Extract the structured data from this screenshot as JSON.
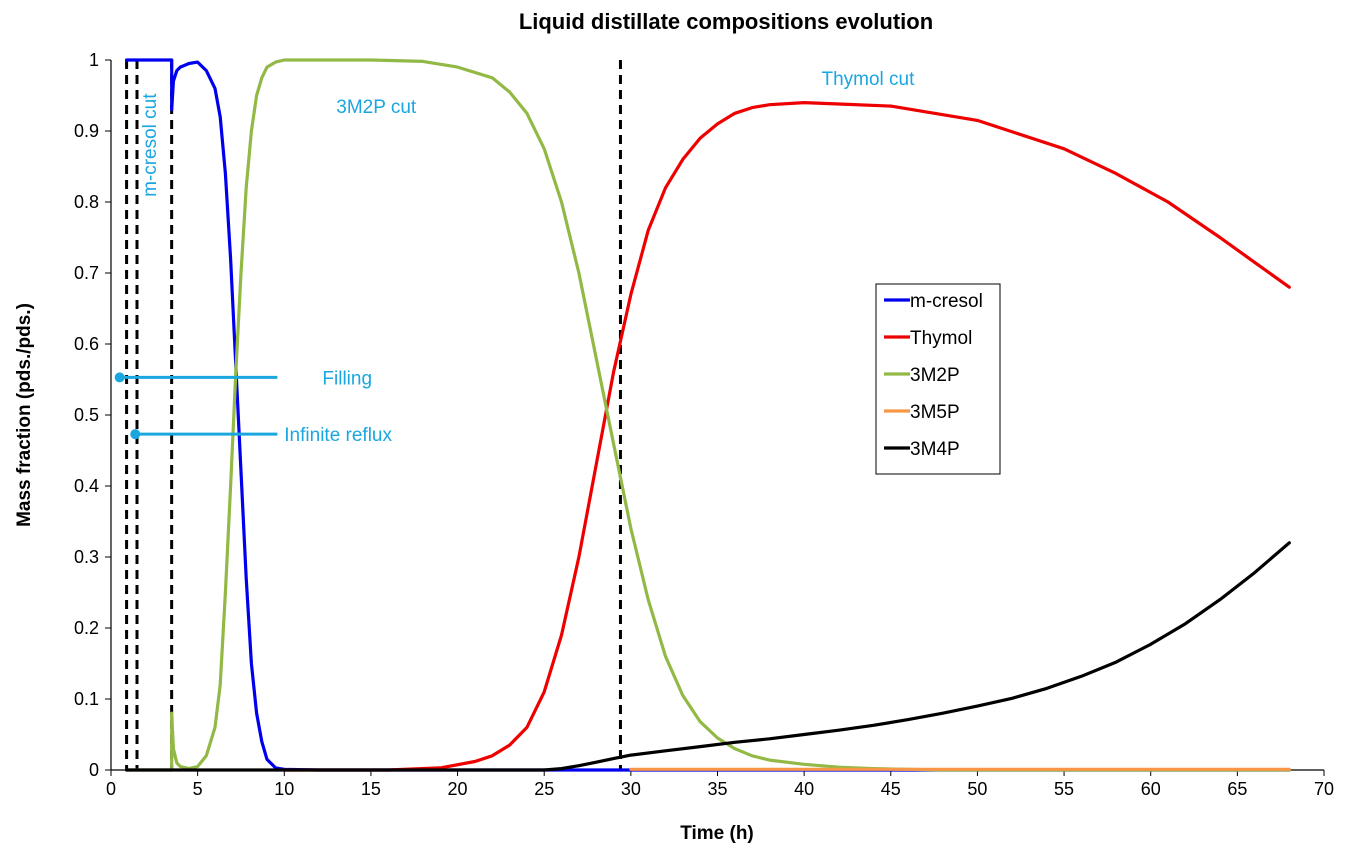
{
  "chart_data": {
    "type": "line",
    "title": "Liquid distillate compositions evolution",
    "xlabel": "Time (h)",
    "ylabel": "Mass fraction (pds./pds.)",
    "xlim": [
      0,
      70
    ],
    "ylim": [
      0,
      1
    ],
    "xticks": [
      0,
      5,
      10,
      15,
      20,
      25,
      30,
      35,
      40,
      45,
      50,
      55,
      60,
      65,
      70
    ],
    "yticks": [
      0,
      0.1,
      0.2,
      0.3,
      0.4,
      0.5,
      0.6,
      0.7,
      0.8,
      0.9,
      1
    ],
    "grid": false,
    "legend_position": "right-middle",
    "series": [
      {
        "name": "m-cresol",
        "color": "#0000ee",
        "x": [
          0.9,
          3.5,
          3.5,
          3.6,
          3.8,
          4.0,
          4.5,
          5.0,
          5.5,
          6.0,
          6.3,
          6.6,
          6.9,
          7.2,
          7.5,
          7.8,
          8.1,
          8.4,
          8.7,
          9.0,
          9.5,
          10.0,
          12.0,
          68.0
        ],
        "y": [
          1.0,
          1.0,
          0.93,
          0.97,
          0.985,
          0.99,
          0.995,
          0.997,
          0.985,
          0.96,
          0.92,
          0.84,
          0.72,
          0.57,
          0.42,
          0.27,
          0.15,
          0.08,
          0.04,
          0.015,
          0.003,
          0.001,
          0.0,
          0.0
        ]
      },
      {
        "name": "Thymol",
        "color": "#ee0000",
        "x": [
          10,
          16,
          19,
          21,
          22,
          23,
          24,
          25,
          26,
          27,
          28,
          29,
          30,
          31,
          32,
          33,
          34,
          35,
          36,
          37,
          38,
          40,
          42,
          45,
          50,
          55,
          58,
          61,
          64,
          66,
          68
        ],
        "y": [
          0.0,
          0.0,
          0.003,
          0.012,
          0.02,
          0.035,
          0.06,
          0.11,
          0.19,
          0.3,
          0.43,
          0.56,
          0.67,
          0.76,
          0.82,
          0.86,
          0.89,
          0.91,
          0.925,
          0.933,
          0.937,
          0.94,
          0.938,
          0.935,
          0.915,
          0.875,
          0.84,
          0.8,
          0.75,
          0.715,
          0.68
        ]
      },
      {
        "name": "3M2P",
        "color": "#92b946",
        "x": [
          0.9,
          3.5,
          3.5,
          3.6,
          3.8,
          4.0,
          4.5,
          5.0,
          5.5,
          6.0,
          6.3,
          6.6,
          6.9,
          7.2,
          7.5,
          7.8,
          8.1,
          8.4,
          8.7,
          9.0,
          9.5,
          10.0,
          12,
          15,
          18,
          20,
          22,
          23,
          24,
          25,
          26,
          27,
          28,
          29,
          30,
          31,
          32,
          33,
          34,
          35,
          36,
          37,
          38,
          40,
          42,
          44,
          46,
          48,
          68
        ],
        "y": [
          0.0,
          0.0,
          0.08,
          0.03,
          0.01,
          0.005,
          0.002,
          0.005,
          0.02,
          0.06,
          0.12,
          0.25,
          0.4,
          0.56,
          0.7,
          0.82,
          0.9,
          0.95,
          0.975,
          0.99,
          0.997,
          1.0,
          1.0,
          1.0,
          0.998,
          0.99,
          0.975,
          0.955,
          0.925,
          0.875,
          0.8,
          0.7,
          0.58,
          0.46,
          0.34,
          0.24,
          0.16,
          0.105,
          0.068,
          0.045,
          0.03,
          0.02,
          0.014,
          0.008,
          0.004,
          0.002,
          0.001,
          0.0,
          0.0
        ]
      },
      {
        "name": "3M5P",
        "color": "#f79646",
        "x": [
          30,
          40,
          50,
          60,
          68
        ],
        "y": [
          0.001,
          0.001,
          0.001,
          0.001,
          0.001
        ]
      },
      {
        "name": "3M4P",
        "color": "#000000",
        "x": [
          0.9,
          25,
          26,
          27,
          28,
          29,
          30,
          32,
          34,
          36,
          38,
          40,
          42,
          44,
          46,
          48,
          50,
          52,
          54,
          56,
          58,
          60,
          62,
          64,
          66,
          68
        ],
        "y": [
          0.0,
          0.0,
          0.002,
          0.006,
          0.011,
          0.016,
          0.021,
          0.027,
          0.033,
          0.039,
          0.044,
          0.05,
          0.056,
          0.063,
          0.071,
          0.08,
          0.09,
          0.101,
          0.115,
          0.132,
          0.152,
          0.177,
          0.206,
          0.24,
          0.278,
          0.32
        ]
      }
    ],
    "vertical_markers": [
      0.9,
      1.5,
      3.5,
      29.4
    ],
    "annotations": [
      {
        "text": "3M2P cut",
        "x": 13,
        "y": 0.935,
        "color": "#1aa6df"
      },
      {
        "text": "Thymol cut",
        "x": 41,
        "y": 0.975,
        "color": "#1aa6df"
      },
      {
        "text": "m-cresol cut",
        "x": 2.6,
        "y": 0.88,
        "color": "#1aa6df",
        "rotation": -90
      },
      {
        "text": "Filling",
        "x": 12.2,
        "y": 0.553,
        "color": "#1aa6df",
        "pointer_from_x": 0.5,
        "pointer_to_x": 9.6
      },
      {
        "text": "Infinite reflux",
        "x": 10,
        "y": 0.473,
        "color": "#1aa6df",
        "pointer_from_x": 1.4,
        "pointer_to_x": 9.6
      }
    ],
    "axis_color": "#000000",
    "annotation_color": "#1aa6df"
  }
}
